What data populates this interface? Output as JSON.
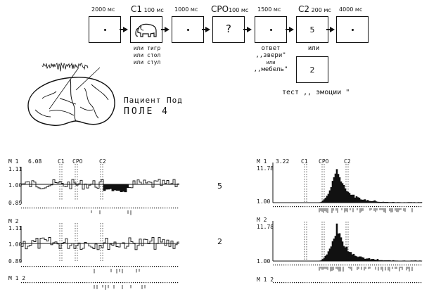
{
  "sequence": [
    {
      "top": "2000 мс",
      "content": "dot"
    },
    {
      "top_tag": "С1",
      "top": "100 мс",
      "content": "elephant"
    },
    {
      "top": "1000 мс",
      "content": "dot"
    },
    {
      "top_tag": "СРО",
      "top": "100 мс",
      "content": "?"
    },
    {
      "top": "1500 мс",
      "content": "dot"
    },
    {
      "top_tag": "С2",
      "top": "200 мс",
      "content": "5"
    },
    {
      "top": "4000 мс",
      "content": "dot"
    }
  ],
  "c1_options": [
    "или тигр",
    "или стол",
    "или стул"
  ],
  "response": [
    "ответ",
    ",,звери\"",
    "или",
    ",,мебель\""
  ],
  "c2_or": "или",
  "c2_alt": "2",
  "test_label": "тест ,, эмоции \"",
  "patient": {
    "line1": "Пациент Под",
    "line2": "ПОЛЕ 4"
  },
  "left_panel": {
    "m1_label": "М 1",
    "m1_max": "6.08",
    "m2_label": "М 2",
    "m12_label": "М 1 2",
    "yticks_top": [
      "1.11",
      "1.00",
      "0.89"
    ],
    "yticks_bottom": [
      "1.11",
      "1.00",
      "0.89"
    ],
    "markers": [
      "С1",
      "СРО",
      "С2"
    ]
  },
  "right_panel": {
    "m1_label": "М 1",
    "m1_max": "3.22",
    "m2_label": "М 2",
    "m12_label": "М 1 2",
    "yticks_top": [
      "11.78",
      "1.00"
    ],
    "yticks_bottom": [
      "11.78",
      "1.00"
    ],
    "markers": [
      "С1",
      "СРО",
      "С2"
    ]
  },
  "row_labels": [
    "5",
    "2"
  ]
}
